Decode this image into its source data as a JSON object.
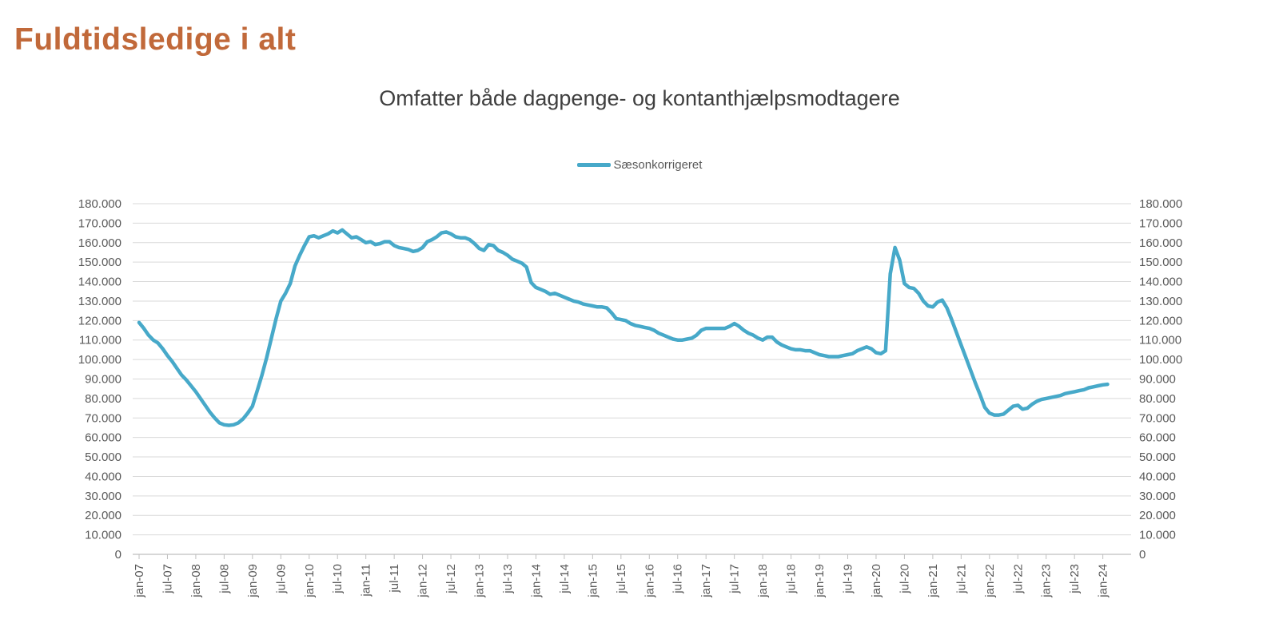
{
  "page": {
    "title": "Fuldtidsledige i alt"
  },
  "colors": {
    "title": "#c1693a",
    "subtitle": "#3f3f3f",
    "line": "#47a9c9",
    "gridline": "#d9d9d9",
    "axis": "#bfbfbf",
    "tick_label": "#595959"
  },
  "legend": {
    "label": "Sæsonkorrigeret"
  },
  "chart_data": {
    "type": "line",
    "title": "Omfatter både dagpenge- og kontanthjælpsmodtagere",
    "legend_entries": [
      "Sæsonkorrigeret"
    ],
    "legend_position": "top-center",
    "grid": "horizontal",
    "x_start": "jan-07",
    "x_frequency": "monthly",
    "xlabel": "",
    "ylabel": "",
    "ylim": [
      0,
      180000
    ],
    "y_tick_step": 10000,
    "y_axis_sides": "left-and-right",
    "y_tick_values": [
      0,
      10000,
      20000,
      30000,
      40000,
      50000,
      60000,
      70000,
      80000,
      90000,
      100000,
      110000,
      120000,
      130000,
      140000,
      150000,
      160000,
      170000,
      180000
    ],
    "y_tick_labels": [
      "0",
      "10.000",
      "20.000",
      "30.000",
      "40.000",
      "50.000",
      "60.000",
      "70.000",
      "80.000",
      "90.000",
      "100.000",
      "110.000",
      "120.000",
      "130.000",
      "140.000",
      "150.000",
      "160.000",
      "170.000",
      "180.000"
    ],
    "x_tick_every_months": 6,
    "x_tick_labels": [
      "jan-07",
      "jul-07",
      "jan-08",
      "jul-08",
      "jan-09",
      "jul-09",
      "jan-10",
      "jul-10",
      "jan-11",
      "jul-11",
      "jan-12",
      "jul-12",
      "jan-13",
      "jul-13",
      "jan-14",
      "jul-14",
      "jan-15",
      "jul-15",
      "jan-16",
      "jul-16",
      "jan-17",
      "jul-17",
      "jan-18",
      "jul-18",
      "jan-19",
      "jul-19",
      "jan-20",
      "jul-20",
      "jan-21",
      "jul-21",
      "jan-22",
      "jul-22",
      "jan-23",
      "jul-23",
      "jan-24"
    ],
    "series": [
      {
        "name": "Sæsonkorrigeret",
        "values": [
          119000,
          116000,
          112500,
          110000,
          108500,
          105500,
          102000,
          99000,
          95500,
          92000,
          89500,
          86500,
          83500,
          80000,
          76500,
          73000,
          70000,
          67500,
          66500,
          66200,
          66500,
          67500,
          69500,
          72500,
          76000,
          84000,
          92000,
          101000,
          111000,
          121000,
          130000,
          134000,
          139000,
          148000,
          153500,
          158500,
          163000,
          163500,
          162500,
          163500,
          164500,
          166000,
          165000,
          166500,
          164500,
          162500,
          163000,
          161500,
          160000,
          160500,
          159000,
          159500,
          160500,
          160500,
          158500,
          157500,
          157000,
          156500,
          155500,
          156000,
          157500,
          160500,
          161500,
          163000,
          165000,
          165500,
          164500,
          163000,
          162500,
          162500,
          161500,
          159500,
          157000,
          156000,
          159000,
          158500,
          156000,
          155000,
          153500,
          151500,
          150500,
          149500,
          147500,
          139500,
          137000,
          136000,
          135000,
          133500,
          134000,
          133000,
          132000,
          131000,
          130000,
          129500,
          128500,
          128000,
          127500,
          127000,
          127000,
          126500,
          124000,
          121000,
          120500,
          120000,
          118500,
          117500,
          117000,
          116500,
          116000,
          115000,
          113500,
          112500,
          111500,
          110500,
          110000,
          110000,
          110500,
          111000,
          112500,
          115000,
          116000,
          116000,
          116000,
          116000,
          116000,
          117000,
          118500,
          117000,
          115000,
          113500,
          112500,
          111000,
          110000,
          111500,
          111500,
          109000,
          107500,
          106500,
          105500,
          105000,
          105000,
          104500,
          104500,
          103500,
          102500,
          102000,
          101500,
          101500,
          101500,
          102000,
          102500,
          103000,
          104500,
          105500,
          106500,
          105500,
          103500,
          103000,
          104500,
          144000,
          157500,
          151000,
          139000,
          137000,
          136500,
          134000,
          130000,
          127500,
          127000,
          129500,
          130500,
          126500,
          120500,
          114000,
          107500,
          101000,
          94500,
          88000,
          82000,
          75500,
          72500,
          71500,
          71500,
          72000,
          74000,
          76000,
          76500,
          74500,
          75000,
          77000,
          78500,
          79500,
          80000,
          80500,
          81000,
          81500,
          82500,
          83000,
          83500,
          84000,
          84500,
          85500,
          86000,
          86500,
          87000,
          87300
        ]
      }
    ]
  }
}
